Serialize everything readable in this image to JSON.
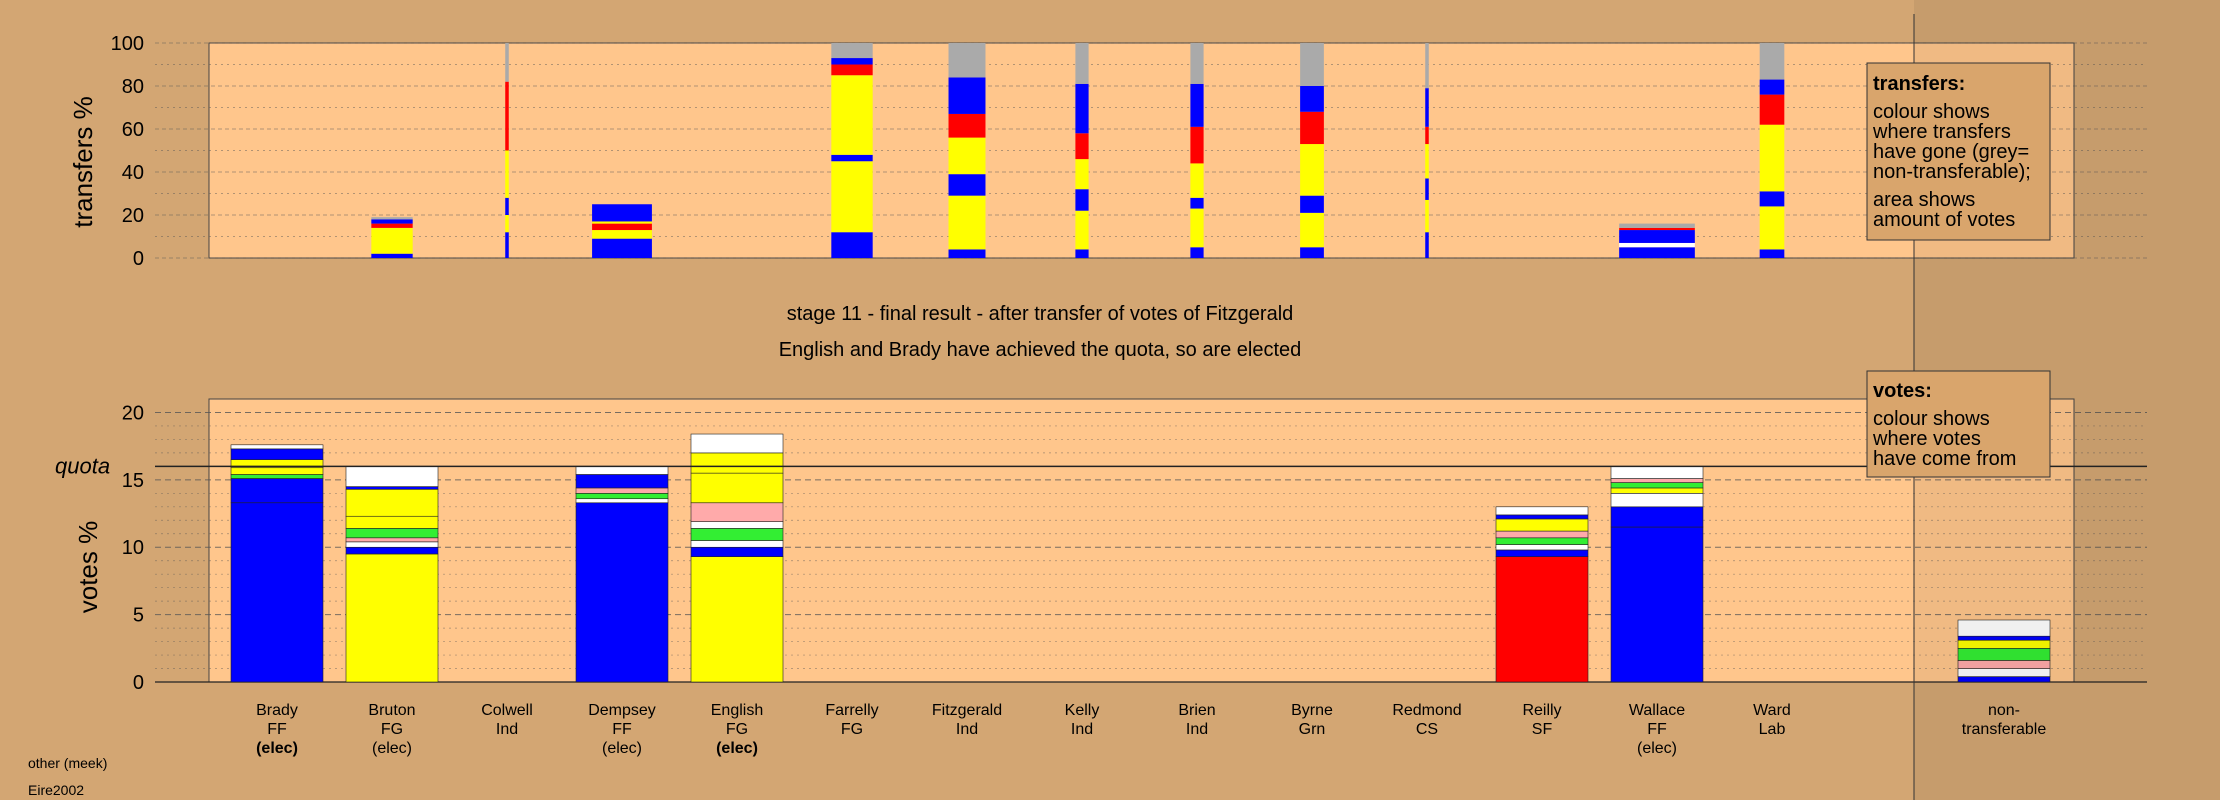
{
  "stage_title": "stage 11 - final result - after transfer of votes of Fitzgerald",
  "stage_subtitle": "English and Brady have achieved the quota, so are elected",
  "footer": {
    "line1": "other (meek)",
    "line2": "Eire2002"
  },
  "colors": {
    "background": "#d3a673",
    "plot_bg": "#ffc68c",
    "FF": "#0000ff",
    "FG": "#ffff00",
    "SF": "#ff0000",
    "Grn": "#33ee33",
    "Lab": "#ffaaaa",
    "nontransferable": "#aaaaaa",
    "other": "#ffffff"
  },
  "chart_data": [
    {
      "type": "bar",
      "name": "transfers",
      "ylabel": "transfers %",
      "ylim": [
        0,
        100
      ],
      "yticks": [
        0,
        20,
        40,
        60,
        80,
        100
      ],
      "legend": {
        "title": "transfers:",
        "lines": [
          "colour shows",
          "where transfers",
          "have gone (grey=",
          "non-transferable);",
          "",
          "area shows",
          "amount of votes"
        ]
      },
      "bars": [
        {
          "candidate": "Bruton",
          "width": 0.47,
          "stack": [
            [
              "FF",
              2
            ],
            [
              "FG",
              12
            ],
            [
              "SF",
              2
            ],
            [
              "FF",
              2
            ],
            [
              "nontransferable",
              1
            ]
          ]
        },
        {
          "candidate": "Colwell",
          "width": 0.04,
          "stack": [
            [
              "FF",
              12
            ],
            [
              "FG",
              8
            ],
            [
              "FF",
              8
            ],
            [
              "FG",
              22
            ],
            [
              "SF",
              32
            ],
            [
              "nontransferable",
              18
            ]
          ]
        },
        {
          "candidate": "Dempsey",
          "width": 0.68,
          "stack": [
            [
              "FF",
              9
            ],
            [
              "FG",
              4
            ],
            [
              "SF",
              3
            ],
            [
              "FG",
              1
            ],
            [
              "FF",
              8
            ]
          ]
        },
        {
          "candidate": "Farrelly",
          "width": 0.47,
          "stack": [
            [
              "FF",
              12
            ],
            [
              "FG",
              33
            ],
            [
              "FF",
              3
            ],
            [
              "FG",
              37
            ],
            [
              "SF",
              5
            ],
            [
              "FF",
              3
            ],
            [
              "nontransferable",
              7
            ]
          ]
        },
        {
          "candidate": "Fitzgerald",
          "width": 0.42,
          "stack": [
            [
              "FF",
              4
            ],
            [
              "FG",
              25
            ],
            [
              "FF",
              10
            ],
            [
              "FG",
              17
            ],
            [
              "SF",
              11
            ],
            [
              "FF",
              17
            ],
            [
              "nontransferable",
              16
            ]
          ]
        },
        {
          "candidate": "Kelly",
          "width": 0.15,
          "stack": [
            [
              "FF",
              4
            ],
            [
              "FG",
              18
            ],
            [
              "FF",
              10
            ],
            [
              "FG",
              14
            ],
            [
              "SF",
              12
            ],
            [
              "FF",
              23
            ],
            [
              "nontransferable",
              19
            ]
          ]
        },
        {
          "candidate": "Brien",
          "width": 0.15,
          "stack": [
            [
              "FF",
              5
            ],
            [
              "FG",
              18
            ],
            [
              "FF",
              5
            ],
            [
              "FG",
              16
            ],
            [
              "SF",
              17
            ],
            [
              "FF",
              20
            ],
            [
              "nontransferable",
              19
            ]
          ]
        },
        {
          "candidate": "Byrne",
          "width": 0.27,
          "stack": [
            [
              "FF",
              5
            ],
            [
              "FG",
              16
            ],
            [
              "FF",
              8
            ],
            [
              "FG",
              24
            ],
            [
              "SF",
              15
            ],
            [
              "FF",
              12
            ],
            [
              "nontransferable",
              20
            ]
          ]
        },
        {
          "candidate": "Redmond",
          "width": 0.04,
          "stack": [
            [
              "FF",
              12
            ],
            [
              "FG",
              15
            ],
            [
              "FF",
              10
            ],
            [
              "FG",
              16
            ],
            [
              "SF",
              8
            ],
            [
              "FF",
              18
            ],
            [
              "nontransferable",
              21
            ]
          ]
        },
        {
          "candidate": "Wallace",
          "width": 0.86,
          "stack": [
            [
              "FF",
              5
            ],
            [
              "other",
              2
            ],
            [
              "FF",
              6
            ],
            [
              "SF",
              1
            ],
            [
              "nontransferable",
              2
            ]
          ]
        },
        {
          "candidate": "Ward",
          "width": 0.28,
          "stack": [
            [
              "FF",
              4
            ],
            [
              "FG",
              20
            ],
            [
              "FF",
              7
            ],
            [
              "FG",
              31
            ],
            [
              "SF",
              14
            ],
            [
              "FF",
              7
            ],
            [
              "nontransferable",
              17
            ]
          ]
        }
      ]
    },
    {
      "type": "bar",
      "name": "votes",
      "ylabel": "votes %",
      "ylim": [
        0,
        20
      ],
      "yticks": [
        0,
        5,
        10,
        15,
        20
      ],
      "quota": 16,
      "quota_label": "quota",
      "legend": {
        "title": "votes:",
        "lines": [
          "colour shows",
          "where votes",
          "have come from"
        ]
      },
      "categories": [
        {
          "name": "Brady",
          "party": "FF",
          "status": "(elec)",
          "bold": true
        },
        {
          "name": "Bruton",
          "party": "FG",
          "status": "(elec)",
          "bold": false
        },
        {
          "name": "Colwell",
          "party": "Ind",
          "status": "",
          "bold": false
        },
        {
          "name": "Dempsey",
          "party": "FF",
          "status": "(elec)",
          "bold": false
        },
        {
          "name": "English",
          "party": "FG",
          "status": "(elec)",
          "bold": true
        },
        {
          "name": "Farrelly",
          "party": "FG",
          "status": "",
          "bold": false
        },
        {
          "name": "Fitzgerald",
          "party": "Ind",
          "status": "",
          "bold": false
        },
        {
          "name": "Kelly",
          "party": "Ind",
          "status": "",
          "bold": false
        },
        {
          "name": "Brien",
          "party": "Ind",
          "status": "",
          "bold": false
        },
        {
          "name": "Byrne",
          "party": "Grn",
          "status": "",
          "bold": false
        },
        {
          "name": "Redmond",
          "party": "CS",
          "status": "",
          "bold": false
        },
        {
          "name": "Reilly",
          "party": "SF",
          "status": "",
          "bold": false
        },
        {
          "name": "Wallace",
          "party": "FF",
          "status": "(elec)",
          "bold": false
        },
        {
          "name": "Ward",
          "party": "Lab",
          "status": "",
          "bold": false
        }
      ],
      "nontransferable_label": [
        "non-",
        "transferable"
      ],
      "bars": [
        {
          "candidate": "Brady",
          "stack": [
            [
              "FF",
              13.3
            ],
            [
              "FF",
              1.8
            ],
            [
              "Grn",
              0.3
            ],
            [
              "FG",
              0.5
            ],
            [
              "FG",
              0.6
            ],
            [
              "FF",
              0.8
            ],
            [
              "other",
              0.3
            ]
          ]
        },
        {
          "candidate": "Bruton",
          "stack": [
            [
              "FG",
              9.5
            ],
            [
              "FF",
              0.5
            ],
            [
              "other",
              0.4
            ],
            [
              "Lab",
              0.3
            ],
            [
              "Grn",
              0.7
            ],
            [
              "FG",
              0.9
            ],
            [
              "FG",
              2.0
            ],
            [
              "FF",
              0.2
            ],
            [
              "other",
              1.5
            ]
          ]
        },
        {
          "candidate": "Dempsey",
          "stack": [
            [
              "FF",
              13.3
            ],
            [
              "other",
              0.3
            ],
            [
              "Grn",
              0.4
            ],
            [
              "Lab",
              0.4
            ],
            [
              "FF",
              1.0
            ],
            [
              "other",
              0.6
            ]
          ]
        },
        {
          "candidate": "English",
          "stack": [
            [
              "FG",
              9.3
            ],
            [
              "FF",
              0.7
            ],
            [
              "other",
              0.5
            ],
            [
              "Grn",
              0.9
            ],
            [
              "other",
              0.5
            ],
            [
              "Lab",
              1.4
            ],
            [
              "FG",
              2.2
            ],
            [
              "FG",
              1.5
            ],
            [
              "other",
              1.4
            ]
          ]
        },
        {
          "candidate": "Reilly",
          "stack": [
            [
              "SF",
              9.3
            ],
            [
              "FF",
              0.5
            ],
            [
              "other",
              0.4
            ],
            [
              "Grn",
              0.5
            ],
            [
              "Lab",
              0.5
            ],
            [
              "FG",
              0.9
            ],
            [
              "FF",
              0.3
            ],
            [
              "other",
              0.6
            ]
          ]
        },
        {
          "candidate": "Wallace",
          "stack": [
            [
              "FF",
              11.5
            ],
            [
              "FF",
              1.5
            ],
            [
              "other",
              1.0
            ],
            [
              "FG",
              0.4
            ],
            [
              "Grn",
              0.4
            ],
            [
              "Lab",
              0.3
            ],
            [
              "other",
              0.9
            ]
          ]
        },
        {
          "candidate": "non-transferable",
          "stack": [
            [
              "FF",
              0.4
            ],
            [
              "other",
              0.6
            ],
            [
              "Lab",
              0.6
            ],
            [
              "Grn",
              0.9
            ],
            [
              "FG",
              0.6
            ],
            [
              "FF",
              0.3
            ],
            [
              "other",
              1.2
            ]
          ]
        }
      ]
    }
  ]
}
